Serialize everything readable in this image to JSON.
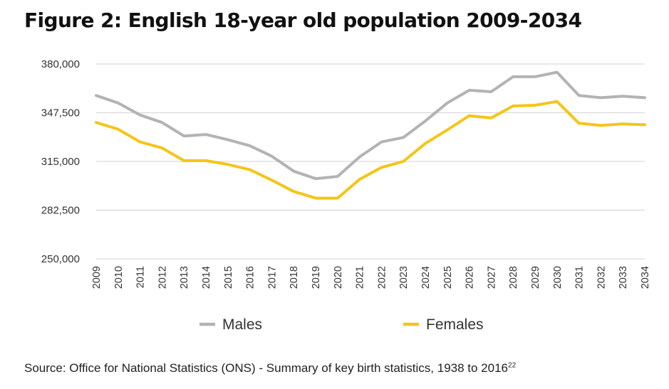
{
  "title": "Figure 2: English 18-year old population 2009-2034",
  "source": {
    "text": "Source: Office for National Statistics (ONS) - Summary of key birth statistics, 1938 to 2016",
    "footnote": "22"
  },
  "chart_data": {
    "type": "line",
    "x": [
      "2009",
      "2010",
      "2011",
      "2012",
      "2013",
      "2014",
      "2015",
      "2016",
      "2017",
      "2018",
      "2019",
      "2020",
      "2021",
      "2022",
      "2023",
      "2024",
      "2025",
      "2026",
      "2027",
      "2028",
      "2029",
      "2030",
      "2031",
      "2032",
      "2033",
      "2034"
    ],
    "y_ticks": [
      "250,000",
      "282,500",
      "315,000",
      "347,500",
      "380,000"
    ],
    "ylim": [
      250000,
      380000
    ],
    "grid": true,
    "legend": "bottom",
    "series": [
      {
        "name": "Males",
        "color": "#b3b3b3",
        "values": [
          359000,
          354000,
          346000,
          341000,
          332000,
          333000,
          329500,
          325500,
          318500,
          308500,
          303500,
          305000,
          318000,
          328000,
          331000,
          342000,
          354000,
          362500,
          361500,
          371500,
          371500,
          374500,
          359000,
          357500,
          358500,
          357500
        ]
      },
      {
        "name": "Females",
        "color": "#f5c518",
        "values": [
          341000,
          336500,
          328000,
          324000,
          315500,
          315500,
          313000,
          309500,
          302500,
          295000,
          290500,
          290500,
          303000,
          311000,
          315000,
          327000,
          336000,
          345500,
          344000,
          352000,
          352500,
          355000,
          340500,
          339000,
          340000,
          339500
        ]
      }
    ]
  }
}
